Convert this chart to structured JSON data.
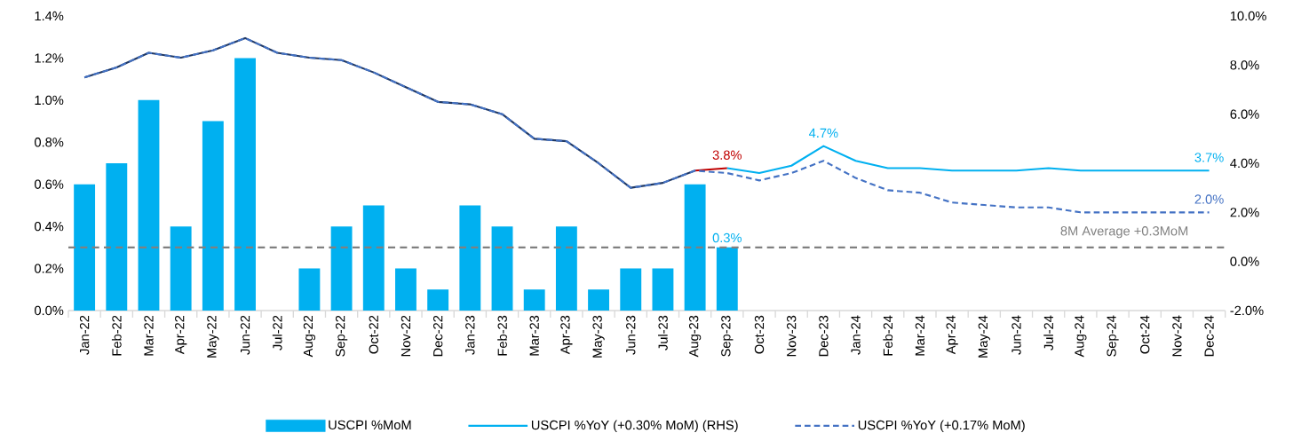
{
  "chart_data": {
    "type": "bar",
    "categories": [
      "Jan-22",
      "Feb-22",
      "Mar-22",
      "Apr-22",
      "May-22",
      "Jun-22",
      "Jul-22",
      "Aug-22",
      "Sep-22",
      "Oct-22",
      "Nov-22",
      "Dec-22",
      "Jan-23",
      "Feb-23",
      "Mar-23",
      "Apr-23",
      "May-23",
      "Jun-23",
      "Jul-23",
      "Aug-23",
      "Sep-23",
      "Oct-23",
      "Nov-23",
      "Dec-23",
      "Jan-24",
      "Feb-24",
      "Mar-24",
      "Apr-24",
      "May-24",
      "Jun-24",
      "Jul-24",
      "Aug-24",
      "Sep-24",
      "Oct-24",
      "Nov-24",
      "Dec-24"
    ],
    "ylim": [
      0,
      1.4
    ],
    "yticks": [
      {
        "value": 0,
        "label": "0.0%"
      },
      {
        "value": 0.2,
        "label": "0.2%"
      },
      {
        "value": 0.4,
        "label": "0.4%"
      },
      {
        "value": 0.6,
        "label": "0.6%"
      },
      {
        "value": 0.8,
        "label": "0.8%"
      },
      {
        "value": 1.0,
        "label": "1.0%"
      },
      {
        "value": 1.2,
        "label": "1.2%"
      },
      {
        "value": 1.4,
        "label": "1.4%"
      }
    ],
    "y2lim": [
      -2,
      10
    ],
    "y2ticks": [
      {
        "value": -2,
        "label": "-2.0%"
      },
      {
        "value": 0,
        "label": "0.0%"
      },
      {
        "value": 2,
        "label": "2.0%"
      },
      {
        "value": 4,
        "label": "4.0%"
      },
      {
        "value": 6,
        "label": "6.0%"
      },
      {
        "value": 8,
        "label": "8.0%"
      },
      {
        "value": 10,
        "label": "10.0%"
      }
    ],
    "legend": "bottom",
    "series": [
      {
        "name": "USCPI  %MoM",
        "color": "#00b0f0",
        "values": [
          0.6,
          0.7,
          1.0,
          0.4,
          0.9,
          1.2,
          0.0,
          0.2,
          0.4,
          0.5,
          0.2,
          0.1,
          0.5,
          0.4,
          0.1,
          0.4,
          0.1,
          0.2,
          0.2,
          0.6,
          0.3,
          null,
          null,
          null,
          null,
          null,
          null,
          null,
          null,
          null,
          null,
          null,
          null,
          null,
          null,
          null
        ],
        "value_labels": [
          null,
          null,
          null,
          null,
          null,
          null,
          null,
          null,
          null,
          null,
          null,
          null,
          null,
          null,
          null,
          null,
          null,
          null,
          null,
          null,
          "0.3%",
          null,
          null,
          null,
          null,
          null,
          null,
          null,
          null,
          null,
          null,
          null,
          null,
          null,
          null,
          null
        ]
      },
      {
        "type": "line",
        "axis": "y2",
        "color": "#1f3864",
        "line_style": "solid",
        "values": [
          7.5,
          7.9,
          8.5,
          8.3,
          8.6,
          9.1,
          8.5,
          8.3,
          8.2,
          7.7,
          7.1,
          6.5,
          6.4,
          6.0,
          5.0,
          4.9,
          4.0,
          3.0,
          3.2,
          3.7,
          null,
          null,
          null,
          null,
          null,
          null,
          null,
          null,
          null,
          null,
          null,
          null,
          null,
          null,
          null,
          null
        ]
      },
      {
        "type": "line",
        "axis": "y2",
        "color": "#c00000",
        "line_style": "solid",
        "values": [
          null,
          null,
          null,
          null,
          null,
          null,
          null,
          null,
          null,
          null,
          null,
          null,
          null,
          null,
          null,
          null,
          null,
          null,
          null,
          3.7,
          3.8,
          null,
          null,
          null,
          null,
          null,
          null,
          null,
          null,
          null,
          null,
          null,
          null,
          null,
          null,
          null
        ],
        "value_labels": [
          null,
          null,
          null,
          null,
          null,
          null,
          null,
          null,
          null,
          null,
          null,
          null,
          null,
          null,
          null,
          null,
          null,
          null,
          null,
          null,
          "3.8%",
          null,
          null,
          null,
          null,
          null,
          null,
          null,
          null,
          null,
          null,
          null,
          null,
          null,
          null,
          null
        ]
      },
      {
        "name": "USCPI  %YoY (+0.30% MoM)  (RHS)",
        "type": "line",
        "axis": "y2",
        "color": "#00b0f0",
        "line_style": "solid",
        "values": [
          null,
          null,
          null,
          null,
          null,
          null,
          null,
          null,
          null,
          null,
          null,
          null,
          null,
          null,
          null,
          null,
          null,
          null,
          null,
          null,
          3.8,
          3.6,
          3.9,
          4.7,
          4.1,
          3.8,
          3.8,
          3.7,
          3.7,
          3.7,
          3.8,
          3.7,
          3.7,
          3.7,
          3.7,
          3.7
        ],
        "value_labels": [
          null,
          null,
          null,
          null,
          null,
          null,
          null,
          null,
          null,
          null,
          null,
          null,
          null,
          null,
          null,
          null,
          null,
          null,
          null,
          null,
          null,
          null,
          null,
          "4.7%",
          null,
          null,
          null,
          null,
          null,
          null,
          null,
          null,
          null,
          null,
          null,
          "3.7%"
        ]
      },
      {
        "name": "USCPI  %YoY (+0.17% MoM)",
        "type": "line",
        "axis": "y2",
        "color": "#4472c4",
        "line_style": "dashed",
        "values": [
          7.5,
          7.9,
          8.5,
          8.3,
          8.6,
          9.1,
          8.5,
          8.3,
          8.2,
          7.7,
          7.1,
          6.5,
          6.4,
          6.0,
          5.0,
          4.9,
          4.0,
          3.0,
          3.2,
          3.7,
          3.6,
          3.3,
          3.6,
          4.1,
          3.4,
          2.9,
          2.8,
          2.4,
          2.3,
          2.2,
          2.2,
          2.0,
          2.0,
          2.0,
          2.0,
          2.0
        ],
        "value_labels": [
          null,
          null,
          null,
          null,
          null,
          null,
          null,
          null,
          null,
          null,
          null,
          null,
          null,
          null,
          null,
          null,
          null,
          null,
          null,
          null,
          null,
          null,
          null,
          null,
          null,
          null,
          null,
          null,
          null,
          null,
          null,
          null,
          null,
          null,
          null,
          "2.0%"
        ]
      }
    ],
    "ref_lines": [
      {
        "axis": "y",
        "value": 0.3,
        "label": "8M Average +0.3MoM",
        "color": "#808080",
        "line_style": "dashed"
      }
    ]
  }
}
